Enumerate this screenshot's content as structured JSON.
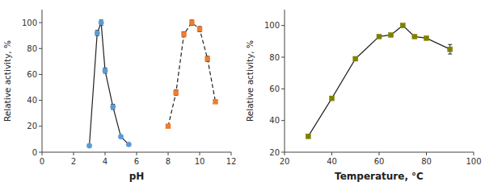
{
  "chart_data": [
    {
      "type": "line",
      "xlabel": "pH",
      "ylabel": "Relative activity, %",
      "xlim": [
        0,
        12
      ],
      "ylim": [
        0,
        110
      ],
      "xticks": [
        0,
        2,
        4,
        6,
        8,
        10,
        12
      ],
      "yticks": [
        0,
        20,
        40,
        60,
        80,
        100
      ],
      "grid": false,
      "series": [
        {
          "x": [
            3.0,
            3.5,
            3.75,
            4.0,
            4.5,
            5.0,
            5.5
          ],
          "values": [
            5,
            92,
            100,
            63,
            35,
            12,
            6
          ],
          "errors": [
            1,
            2,
            2,
            2,
            2,
            1,
            1
          ],
          "color": "#5b9bd5",
          "marker": "circle",
          "line_style": "solid"
        },
        {
          "x": [
            8.0,
            8.5,
            9.0,
            9.5,
            10.0,
            10.5,
            11.0
          ],
          "values": [
            20,
            46,
            91,
            100,
            95,
            72,
            39
          ],
          "errors": [
            1,
            2,
            2,
            2,
            2,
            2,
            1
          ],
          "color": "#ed7d31",
          "marker": "square",
          "line_style": "dashed"
        }
      ]
    },
    {
      "type": "line",
      "xlabel": "Temperature, °C",
      "ylabel": "Relative activity, %",
      "xlim": [
        20,
        100
      ],
      "ylim": [
        20,
        110
      ],
      "xticks": [
        20,
        40,
        60,
        80,
        100
      ],
      "yticks": [
        20,
        40,
        60,
        80,
        100
      ],
      "grid": false,
      "series": [
        {
          "x": [
            30,
            40,
            50,
            60,
            65,
            70,
            75,
            80,
            90
          ],
          "values": [
            30,
            54,
            79,
            93,
            94,
            100,
            93,
            92,
            85
          ],
          "errors": [
            1,
            1,
            1,
            1,
            1,
            1,
            1,
            1,
            3
          ],
          "color": "#808000",
          "marker": "square",
          "line_style": "solid"
        }
      ]
    }
  ]
}
